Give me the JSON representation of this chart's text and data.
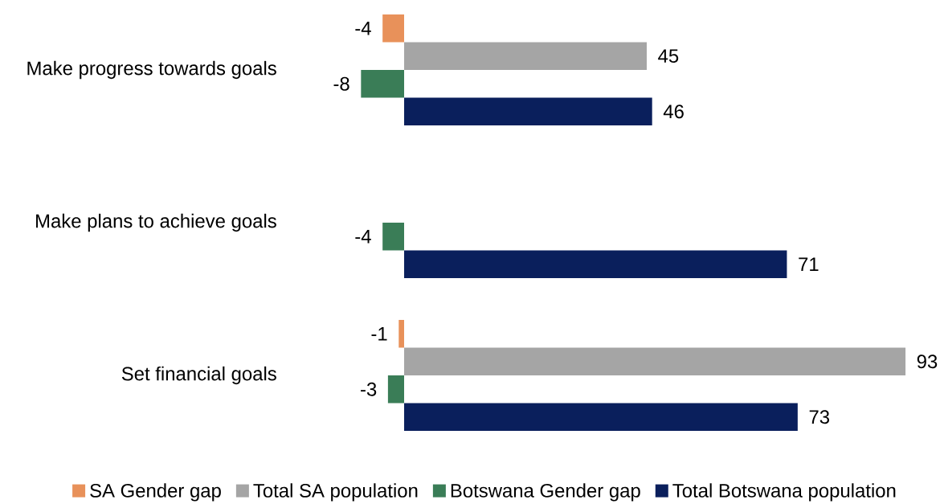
{
  "chart_data": {
    "type": "bar",
    "orientation": "horizontal",
    "categories": [
      "Make progress towards goals",
      "Make plans to achieve goals",
      "Set financial goals"
    ],
    "series": [
      {
        "name": "SA Gender gap",
        "color": "#e8915a",
        "values": [
          -4,
          null,
          -1
        ]
      },
      {
        "name": "Total SA population",
        "color": "#a5a5a5",
        "values": [
          45,
          null,
          93
        ]
      },
      {
        "name": "Botswana Gender gap",
        "color": "#3a7d57",
        "values": [
          -8,
          -4,
          -3
        ]
      },
      {
        "name": "Total Botswana population",
        "color": "#0a1f5c",
        "values": [
          46,
          71,
          73
        ]
      }
    ],
    "data_labels": true,
    "legend": "bottom"
  }
}
